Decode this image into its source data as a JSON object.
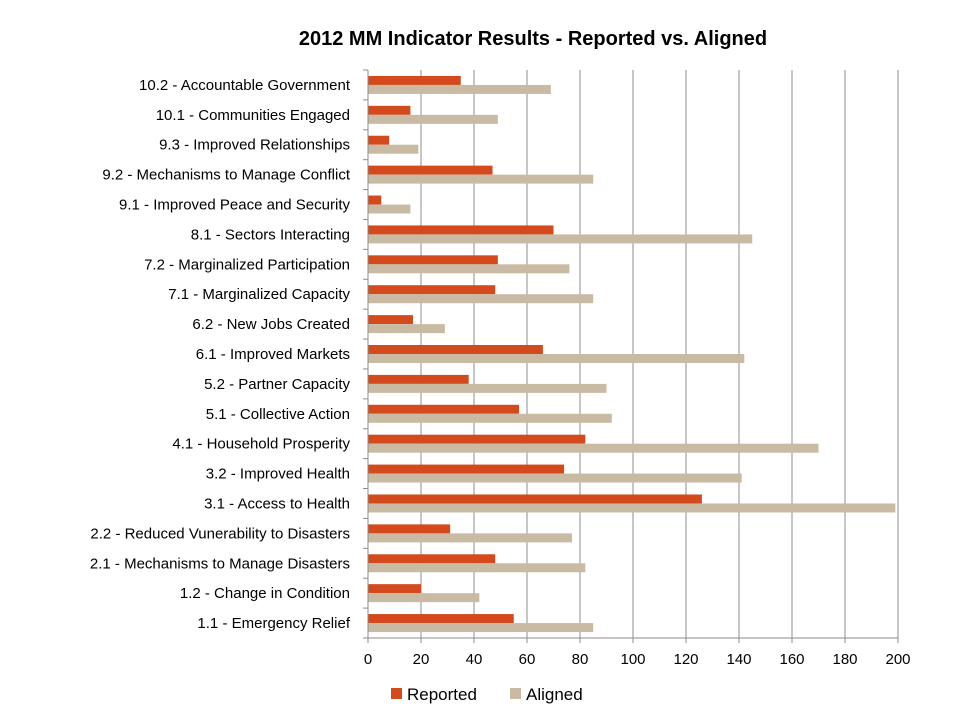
{
  "chart_data": {
    "type": "bar",
    "orientation": "horizontal",
    "title": "2012 MM Indicator Results  - Reported vs. Aligned",
    "xlim": [
      0,
      200
    ],
    "xticks": [
      0,
      20,
      40,
      60,
      80,
      100,
      120,
      140,
      160,
      180,
      200
    ],
    "grid": "vertical",
    "legend_position": "bottom",
    "categories": [
      "10.2 - Accountable Government",
      "10.1 - Communities Engaged",
      "9.3 - Improved Relationships",
      "9.2 - Mechanisms to Manage Conflict",
      "9.1 - Improved Peace and Security",
      "8.1 - Sectors Interacting",
      "7.2 - Marginalized Participation",
      "7.1 - Marginalized Capacity",
      "6.2 - New Jobs Created",
      "6.1 - Improved Markets",
      "5.2 - Partner Capacity",
      "5.1 - Collective Action",
      "4.1 - Household Prosperity",
      "3.2 - Improved Health",
      "3.1 - Access to Health",
      "2.2 - Reduced Vunerability to Disasters",
      "2.1 - Mechanisms to Manage Disasters",
      "1.2 - Change in Condition",
      "1.1 - Emergency Relief"
    ],
    "series": [
      {
        "name": "Reported",
        "color": "#d44a1c",
        "values": [
          35,
          16,
          8,
          47,
          5,
          70,
          49,
          48,
          17,
          66,
          38,
          57,
          82,
          74,
          126,
          31,
          48,
          20,
          55
        ]
      },
      {
        "name": "Aligned",
        "color": "#c9bba3",
        "values": [
          69,
          49,
          19,
          85,
          16,
          145,
          76,
          85,
          29,
          142,
          90,
          92,
          170,
          141,
          199,
          77,
          82,
          42,
          85
        ]
      }
    ]
  }
}
